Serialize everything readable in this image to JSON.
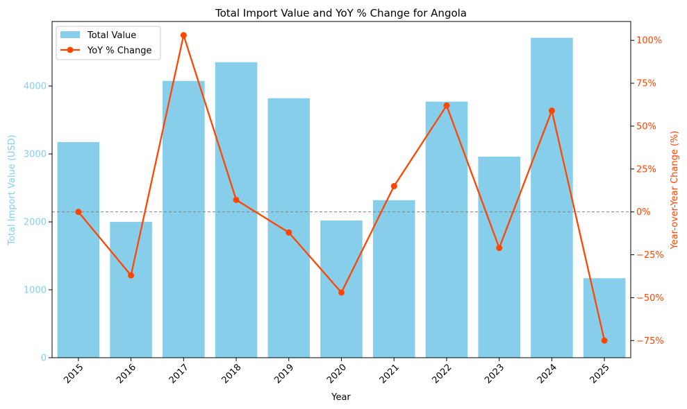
{
  "chart_data": {
    "type": "bar+line",
    "title": "Total Import Value and YoY % Change for Angola",
    "xlabel": "Year",
    "ylabel_left": "Total Import Value (USD)",
    "ylabel_right": "Year-over-Year Change (%)",
    "categories": [
      "2015",
      "2016",
      "2017",
      "2018",
      "2019",
      "2020",
      "2021",
      "2022",
      "2023",
      "2024",
      "2025"
    ],
    "series": [
      {
        "name": "Total Value",
        "type": "bar",
        "axis": "left",
        "color": "#87ceeb",
        "values": [
          3175,
          2000,
          4075,
          4350,
          3820,
          2020,
          2320,
          3770,
          2960,
          4710,
          1170
        ]
      },
      {
        "name": "YoY % Change",
        "type": "line",
        "axis": "right",
        "color": "#ff4500",
        "values": [
          0,
          -37,
          103,
          7,
          -12,
          -47,
          15,
          62,
          -21,
          59,
          -75
        ]
      }
    ],
    "left_axis": {
      "ylim": [
        0,
        4950
      ],
      "ticks": [
        0,
        1000,
        2000,
        3000,
        4000
      ],
      "tick_color": "#87ceeb"
    },
    "right_axis": {
      "ylim": [
        -85,
        111
      ],
      "ticks": [
        -75,
        -50,
        -25,
        0,
        25,
        50,
        75,
        100
      ],
      "tick_labels": [
        "−75%",
        "−50%",
        "−25%",
        "0%",
        "25%",
        "50%",
        "75%",
        "100%"
      ],
      "tick_color": "#ff4500"
    },
    "reference_line": {
      "axis": "right",
      "value": 0,
      "style": "dashed",
      "color": "#808080"
    },
    "legend": {
      "position": "top-left"
    },
    "grid": false
  }
}
